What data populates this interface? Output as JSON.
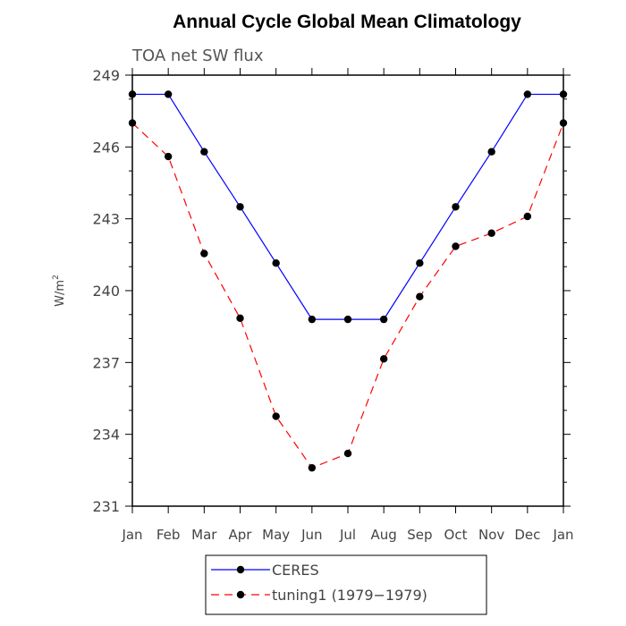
{
  "chart_data": {
    "type": "line",
    "title": "Annual Cycle Global Mean Climatology",
    "subtitle": "TOA net SW flux",
    "xlabel": "",
    "ylabel": "W/m",
    "ylabel_superscript": "2",
    "categories": [
      "Jan",
      "Feb",
      "Mar",
      "Apr",
      "May",
      "Jun",
      "Jul",
      "Aug",
      "Sep",
      "Oct",
      "Nov",
      "Dec",
      "Jan"
    ],
    "ylim": [
      231,
      249
    ],
    "yticks": [
      231,
      234,
      237,
      240,
      243,
      246,
      249
    ],
    "grid": false,
    "legend_position": "bottom-center",
    "series": [
      {
        "name": "CERES",
        "color": "#0000ff",
        "dash": "solid",
        "marker": "circle",
        "values": [
          248.2,
          248.2,
          245.8,
          243.5,
          241.15,
          238.8,
          238.8,
          238.8,
          241.15,
          243.5,
          245.8,
          248.2,
          248.2
        ]
      },
      {
        "name": "tuning1 (1979−1979)",
        "color": "#ff0000",
        "dash": "dashed",
        "marker": "circle",
        "values": [
          247.0,
          245.6,
          241.55,
          238.85,
          234.75,
          232.6,
          233.2,
          237.15,
          239.75,
          241.85,
          242.4,
          243.1,
          247.0
        ]
      }
    ]
  }
}
